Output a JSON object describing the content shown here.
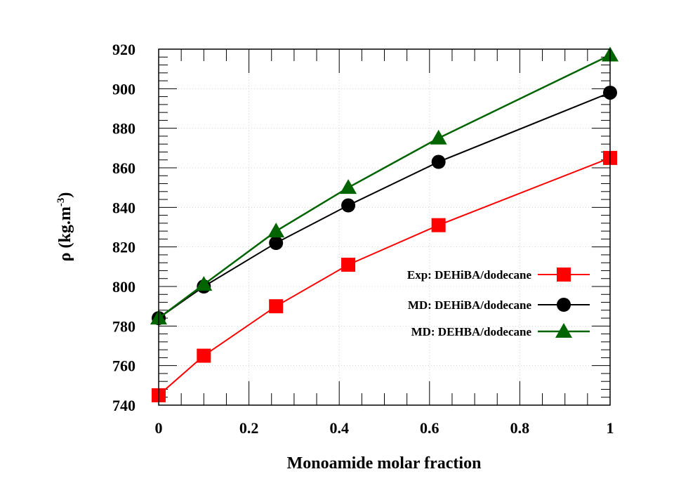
{
  "chart_data": {
    "type": "line",
    "title": "",
    "xlabel": "Monoamide molar fraction",
    "ylabel": "ρ (kg.m",
    "ylabel_sup": "-3",
    "ylabel_tail": ")",
    "xlim": [
      0,
      1
    ],
    "ylim": [
      740,
      920
    ],
    "xticks": [
      0,
      0.2,
      0.4,
      0.6,
      0.8,
      1
    ],
    "xtick_labels": [
      "0",
      "0.2",
      "0.4",
      "0.6",
      "0.8",
      "1"
    ],
    "yticks": [
      740,
      760,
      780,
      800,
      820,
      840,
      860,
      880,
      900,
      920
    ],
    "ytick_labels": [
      "740",
      "760",
      "780",
      "800",
      "820",
      "840",
      "860",
      "880",
      "900",
      "920"
    ],
    "grid": true,
    "legend_position": "center-right",
    "series": [
      {
        "name": "Exp: DEHiBA/dodecane",
        "color": "#ff0000",
        "marker": "square",
        "x": [
          0,
          0.1,
          0.26,
          0.42,
          0.62,
          1
        ],
        "y": [
          745,
          765,
          790,
          811,
          831,
          865
        ]
      },
      {
        "name": "MD: DEHiBA/dodecane",
        "color": "#000000",
        "marker": "circle",
        "x": [
          0,
          0.1,
          0.26,
          0.42,
          0.62,
          1
        ],
        "y": [
          784,
          800,
          822,
          841,
          863,
          898
        ]
      },
      {
        "name": "MD: DEHBA/dodecane",
        "color": "#006400",
        "marker": "triangle",
        "x": [
          0,
          0.1,
          0.26,
          0.42,
          0.62,
          1
        ],
        "y": [
          784,
          801,
          828,
          850,
          875,
          917
        ]
      }
    ]
  }
}
